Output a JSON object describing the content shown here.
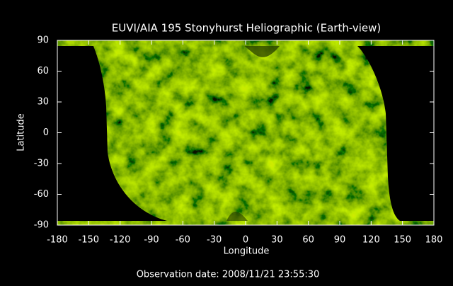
{
  "chart_data": {
    "type": "map",
    "title": "EUVI/AIA 195 Stonyhurst Heliographic (Earth-view)",
    "xlabel": "Longitude",
    "ylabel": "Latitude",
    "annotation": "Observation date: 2008/11/21 23:55:30",
    "xlim": [
      -180,
      180
    ],
    "ylim": [
      -90,
      90
    ],
    "xticks": [
      -180,
      -150,
      -120,
      -90,
      -60,
      -30,
      0,
      30,
      60,
      90,
      120,
      150,
      180
    ],
    "yticks": [
      -90,
      -60,
      -30,
      0,
      30,
      60,
      90
    ]
  }
}
